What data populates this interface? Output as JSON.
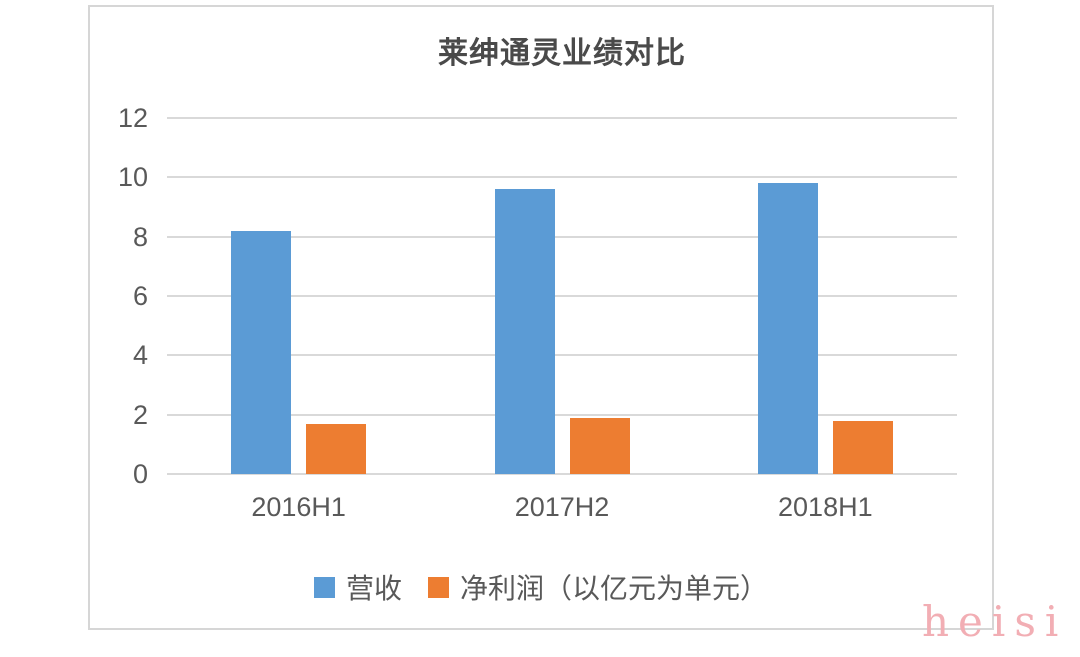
{
  "watermark": "heisi",
  "colors": {
    "revenue_blue": "#5B9BD5",
    "profit_orange": "#ED7D31",
    "gridline": "#D9D9D9",
    "frame_border": "#D6D6D6",
    "axis_text": "#595959",
    "title_text": "#4A4A4A",
    "watermark_pink": "#F2AEB4"
  },
  "chart_data": {
    "type": "bar",
    "title": "莱绅通灵业绩对比",
    "categories": [
      "2016H1",
      "2017H2",
      "2018H1"
    ],
    "series": [
      {
        "name": "营收",
        "color": "#5B9BD5",
        "values": [
          8.2,
          9.6,
          9.8
        ]
      },
      {
        "name": "净利润（以亿元为单元）",
        "color": "#ED7D31",
        "values": [
          1.7,
          1.9,
          1.8
        ]
      }
    ],
    "xlabel": "",
    "ylabel": "",
    "ylim": [
      0,
      12
    ],
    "yticks": [
      0,
      2,
      4,
      6,
      8,
      10,
      12
    ],
    "grid": true,
    "legend_position": "bottom"
  }
}
